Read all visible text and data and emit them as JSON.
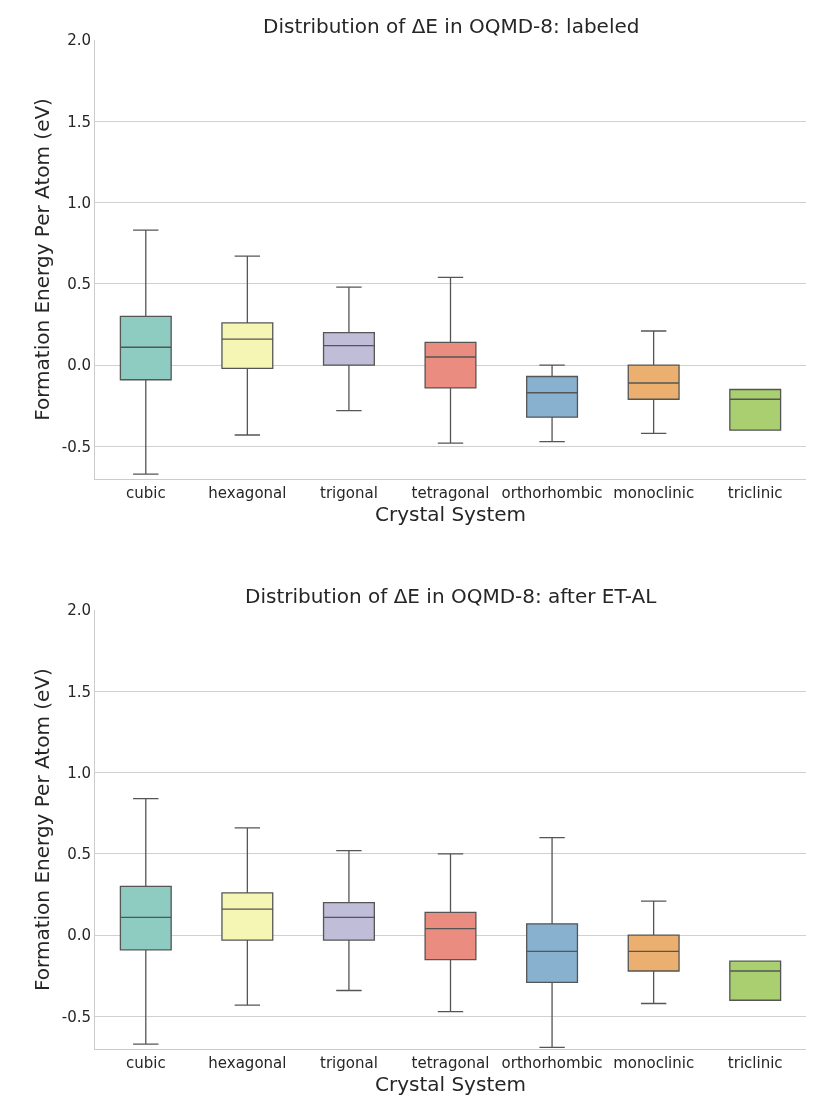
{
  "chart_data": [
    {
      "type": "box",
      "title": "Distribution of ΔE in OQMD-8: labeled",
      "xlabel": "Crystal System",
      "ylabel": "Formation Energy Per Atom (eV)",
      "categories": [
        "cubic",
        "hexagonal",
        "trigonal",
        "tetragonal",
        "orthorhombic",
        "monoclinic",
        "triclinic"
      ],
      "colors": [
        "#8ecbc0",
        "#f6f6b4",
        "#c0bdd8",
        "#ea8c7f",
        "#88b0cf",
        "#ebb06f",
        "#a9cf71"
      ],
      "boxes": [
        {
          "low": -0.67,
          "q1": -0.09,
          "median": 0.11,
          "q3": 0.3,
          "high": 0.83
        },
        {
          "low": -0.43,
          "q1": -0.02,
          "median": 0.16,
          "q3": 0.26,
          "high": 0.67
        },
        {
          "low": -0.28,
          "q1": 0.0,
          "median": 0.12,
          "q3": 0.2,
          "high": 0.48
        },
        {
          "low": -0.48,
          "q1": -0.14,
          "median": 0.05,
          "q3": 0.14,
          "high": 0.54
        },
        {
          "low": -0.47,
          "q1": -0.32,
          "median": -0.17,
          "q3": -0.07,
          "high": 0.0
        },
        {
          "low": -0.42,
          "q1": -0.21,
          "median": -0.11,
          "q3": 0.0,
          "high": 0.21
        },
        {
          "low": -0.4,
          "q1": -0.4,
          "median": -0.21,
          "q3": -0.15,
          "high": -0.15
        }
      ],
      "ylim": [
        -0.7,
        2.0
      ],
      "yticks": [
        -0.5,
        {
          "value": 0,
          "label": "0.0"
        },
        0.5,
        {
          "value": 1,
          "label": "1.0"
        },
        1.5,
        {
          "value": 2,
          "label": "2.0"
        }
      ],
      "grid": "y"
    },
    {
      "type": "box",
      "title": "Distribution of ΔE in OQMD-8: after ET-AL",
      "xlabel": "Crystal System",
      "ylabel": "Formation Energy Per Atom (eV)",
      "categories": [
        "cubic",
        "hexagonal",
        "trigonal",
        "tetragonal",
        "orthorhombic",
        "monoclinic",
        "triclinic"
      ],
      "colors": [
        "#8ecbc0",
        "#f6f6b4",
        "#c0bdd8",
        "#ea8c7f",
        "#88b0cf",
        "#ebb06f",
        "#a9cf71"
      ],
      "boxes": [
        {
          "low": -0.67,
          "q1": -0.09,
          "median": 0.11,
          "q3": 0.3,
          "high": 0.84
        },
        {
          "low": -0.43,
          "q1": -0.03,
          "median": 0.16,
          "q3": 0.26,
          "high": 0.66
        },
        {
          "low": -0.34,
          "q1": -0.03,
          "median": 0.11,
          "q3": 0.2,
          "high": 0.52
        },
        {
          "low": -0.47,
          "q1": -0.15,
          "median": 0.04,
          "q3": 0.14,
          "high": 0.5
        },
        {
          "low": -0.69,
          "q1": -0.29,
          "median": -0.1,
          "q3": 0.07,
          "high": 0.6
        },
        {
          "low": -0.42,
          "q1": -0.22,
          "median": -0.1,
          "q3": 0.0,
          "high": 0.21
        },
        {
          "low": -0.4,
          "q1": -0.4,
          "median": -0.22,
          "q3": -0.16,
          "high": -0.16
        }
      ],
      "ylim": [
        -0.7,
        2.0
      ],
      "yticks": [
        -0.5,
        {
          "value": 0,
          "label": "0.0"
        },
        0.5,
        {
          "value": 1,
          "label": "1.0"
        },
        1.5,
        {
          "value": 2,
          "label": "2.0"
        }
      ],
      "grid": "y"
    }
  ]
}
